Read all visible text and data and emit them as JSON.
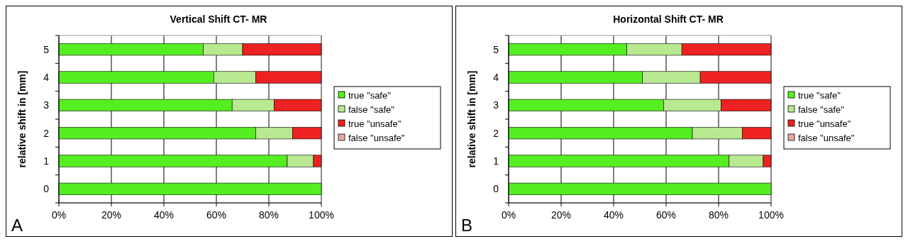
{
  "chart_data": [
    {
      "type": "bar",
      "orientation": "horizontal",
      "stacked": true,
      "title": "Vertical Shift CT- MR",
      "ylabel": "relative shift in [mm]",
      "categories": [
        "5",
        "4",
        "3",
        "2",
        "1",
        "0"
      ],
      "series": [
        {
          "name": "true \"safe\"",
          "color": "#55ee22",
          "values": [
            55,
            59,
            66,
            75,
            87,
            100
          ]
        },
        {
          "name": "false \"safe\"",
          "color": "#b8e890",
          "values": [
            15,
            16,
            16,
            14,
            10,
            0
          ]
        },
        {
          "name": "true \"unsafe\"",
          "color": "#ee2222",
          "values": [
            30,
            25,
            18,
            11,
            3,
            0
          ]
        },
        {
          "name": "false \"unsafe\"",
          "color": "#e8a8a0",
          "values": [
            0,
            0,
            0,
            0,
            0,
            0
          ]
        }
      ],
      "xlim": [
        0,
        100
      ],
      "xticks": [
        {
          "value": 0,
          "label": "0%"
        },
        {
          "value": 20,
          "label": "20%"
        },
        {
          "value": 40,
          "label": "40%"
        },
        {
          "value": 60,
          "label": "60%"
        },
        {
          "value": 80,
          "label": "80%"
        },
        {
          "value": 100,
          "label": "100%"
        }
      ],
      "grid": "x",
      "legend": "right",
      "annotations": [
        "A"
      ]
    },
    {
      "type": "bar",
      "orientation": "horizontal",
      "stacked": true,
      "title": "Horizontal Shift CT- MR",
      "ylabel": "relative shift in [mm]",
      "categories": [
        "5",
        "4",
        "3",
        "2",
        "1",
        "0"
      ],
      "series": [
        {
          "name": "true \"safe\"",
          "color": "#55ee22",
          "values": [
            45,
            51,
            59,
            70,
            84,
            100
          ]
        },
        {
          "name": "false \"safe\"",
          "color": "#b8e890",
          "values": [
            21,
            22,
            22,
            19,
            13,
            0
          ]
        },
        {
          "name": "true \"unsafe\"",
          "color": "#ee2222",
          "values": [
            34,
            27,
            19,
            11,
            3,
            0
          ]
        },
        {
          "name": "false \"unsafe\"",
          "color": "#e8a8a0",
          "values": [
            0,
            0,
            0,
            0,
            0,
            0
          ]
        }
      ],
      "xlim": [
        0,
        100
      ],
      "xticks": [
        {
          "value": 0,
          "label": "0%"
        },
        {
          "value": 20,
          "label": "20%"
        },
        {
          "value": 40,
          "label": "40%"
        },
        {
          "value": 60,
          "label": "60%"
        },
        {
          "value": 80,
          "label": "80%"
        },
        {
          "value": 100,
          "label": "100%"
        }
      ],
      "grid": "x",
      "legend": "right",
      "annotations": [
        "B"
      ]
    }
  ]
}
